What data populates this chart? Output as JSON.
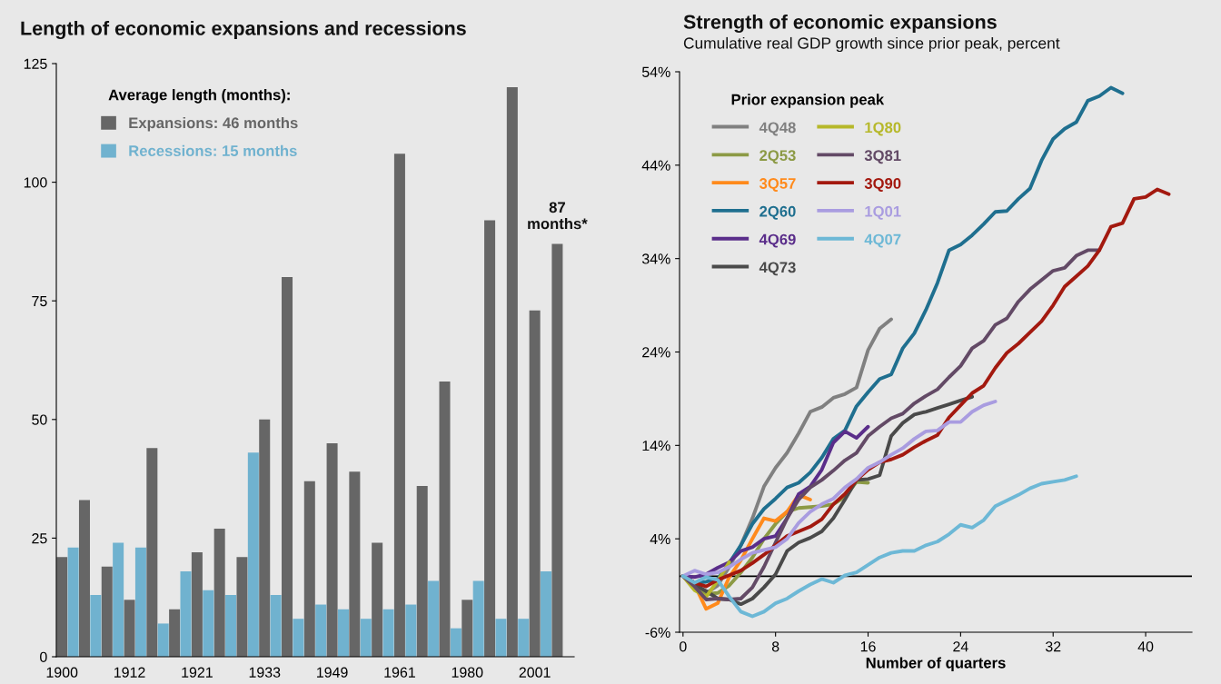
{
  "chart_data": [
    {
      "type": "bar",
      "title": "Length of economic expansions and recessions",
      "categories": [
        "1900",
        null,
        null,
        null,
        null,
        null,
        "1912",
        null,
        null,
        null,
        null,
        null,
        "1921",
        null,
        null,
        null,
        null,
        null,
        "1933",
        null,
        null,
        null,
        null,
        null,
        "1949",
        null,
        null,
        null,
        null,
        null,
        "1961",
        null,
        null,
        null,
        null,
        null,
        "1980",
        null,
        null,
        null,
        null,
        null,
        "2001",
        null,
        null
      ],
      "series": [
        {
          "name": "Expansions: 46 months",
          "color": "#666666",
          "values": [
            21,
            null,
            33,
            null,
            19,
            null,
            12,
            null,
            44,
            null,
            10,
            null,
            22,
            null,
            27,
            null,
            21,
            null,
            50,
            null,
            80,
            null,
            37,
            null,
            45,
            null,
            39,
            null,
            24,
            null,
            106,
            null,
            36,
            null,
            58,
            null,
            12,
            null,
            92,
            null,
            120,
            null,
            73,
            null,
            87
          ]
        },
        {
          "name": "Recessions: 15 months",
          "color": "#70b2cf",
          "values": [
            null,
            23,
            null,
            13,
            null,
            24,
            null,
            23,
            null,
            7,
            null,
            18,
            null,
            14,
            null,
            13,
            null,
            43,
            null,
            13,
            null,
            8,
            null,
            11,
            null,
            10,
            null,
            8,
            null,
            10,
            null,
            11,
            null,
            16,
            null,
            6,
            null,
            16,
            null,
            8,
            null,
            8,
            null,
            18,
            null
          ]
        }
      ],
      "ylim": [
        0,
        125
      ],
      "yticks": [
        0,
        25,
        50,
        75,
        100,
        125
      ],
      "legend": "top left",
      "legend_title": "Average length (months):",
      "annotations": [
        "87\nmonths*"
      ]
    },
    {
      "type": "line",
      "title": "Strength of economic expansions",
      "subtitle": "Cumulative real GDP growth since prior peak, percent",
      "xlabel": "Number of quarters",
      "series": [
        {
          "name": "4Q48",
          "color": "#808080",
          "x": [
            0,
            1,
            2,
            3,
            4,
            5,
            6,
            7,
            8,
            9,
            10,
            11,
            12,
            13,
            14,
            15,
            16,
            17,
            18
          ],
          "values": [
            0,
            -0.9,
            -1.8,
            -1.0,
            1.0,
            3.3,
            6.2,
            9.6,
            11.6,
            13.2,
            15.3,
            17.6,
            18.1,
            19.1,
            19.5,
            20.2,
            24.2,
            26.5,
            27.5
          ]
        },
        {
          "name": "2Q53",
          "color": "#8c9a45",
          "x": [
            0,
            1,
            2,
            3,
            4,
            5,
            6,
            7,
            8,
            9,
            10,
            11,
            12,
            13,
            14,
            15,
            16
          ],
          "values": [
            0,
            -1.2,
            -1.9,
            -1.8,
            -1.0,
            0.4,
            2.0,
            4.0,
            5.6,
            6.9,
            7.3,
            7.4,
            7.5,
            7.7,
            8.5,
            10.1,
            10.0
          ]
        },
        {
          "name": "3Q57",
          "color": "#ff8a1c",
          "x": [
            0,
            1,
            2,
            3,
            4,
            5,
            6,
            7,
            8,
            9,
            10,
            11
          ],
          "values": [
            0,
            -0.9,
            -3.5,
            -2.9,
            -0.1,
            1.7,
            4.0,
            6.2,
            5.9,
            6.9,
            8.7,
            8.2
          ]
        },
        {
          "name": "2Q60",
          "color": "#1f6f8f",
          "x": [
            0,
            1,
            2,
            3,
            4,
            5,
            6,
            7,
            8,
            9,
            10,
            11,
            12,
            13,
            14,
            15,
            16,
            17,
            18,
            19,
            20,
            21,
            22,
            23,
            24,
            25,
            26,
            27,
            28,
            29,
            30,
            31,
            32,
            33,
            34,
            35,
            36,
            37,
            38
          ],
          "values": [
            0,
            -0.7,
            -0.6,
            -0.3,
            1.4,
            3.3,
            5.6,
            7.2,
            8.3,
            9.5,
            10.0,
            11.1,
            12.7,
            14.7,
            15.6,
            18.2,
            19.7,
            21.1,
            21.6,
            24.4,
            26.0,
            28.5,
            31.4,
            34.9,
            35.5,
            36.5,
            37.7,
            39.0,
            39.1,
            40.4,
            41.5,
            44.5,
            46.8,
            47.9,
            48.6,
            50.9,
            51.4,
            52.3,
            51.7
          ]
        },
        {
          "name": "4Q69",
          "color": "#5a2d8a",
          "x": [
            0,
            1,
            2,
            3,
            4,
            5,
            6,
            7,
            8,
            9,
            10,
            11,
            12,
            13,
            14,
            15,
            16
          ],
          "values": [
            0,
            -0.1,
            0.2,
            0.9,
            1.5,
            2.7,
            3.1,
            4.0,
            4.3,
            6.2,
            8.8,
            9.6,
            11.4,
            14.3,
            15.5,
            14.8,
            16.0
          ]
        },
        {
          "name": "4Q73",
          "color": "#4a4a4a",
          "x": [
            0,
            1,
            2,
            3,
            4,
            5,
            6,
            7,
            8,
            9,
            10,
            11,
            12,
            13,
            14,
            15,
            16,
            17,
            18,
            19,
            20,
            21,
            22,
            23,
            24,
            25
          ],
          "values": [
            0,
            -0.9,
            -1.6,
            -2.4,
            -2.5,
            -3.0,
            -2.4,
            -1.2,
            0.2,
            2.7,
            3.6,
            4.1,
            4.8,
            6.2,
            8.2,
            10.3,
            10.4,
            10.8,
            15.0,
            16.4,
            17.3,
            17.6,
            18.0,
            18.4,
            18.8,
            19.2
          ]
        },
        {
          "name": "1Q80",
          "color": "#b6b82a",
          "x": [
            0,
            1,
            2,
            3,
            4
          ],
          "values": [
            0,
            -1.5,
            -2.2,
            -0.5,
            1.5
          ]
        },
        {
          "name": "3Q81",
          "color": "#634a66",
          "x": [
            0,
            1,
            2,
            3,
            4,
            5,
            6,
            7,
            8,
            9,
            10,
            11,
            12,
            13,
            14,
            15,
            16,
            17,
            18,
            19,
            20,
            21,
            22,
            23,
            24,
            25,
            26,
            27,
            28,
            29,
            30,
            31,
            32,
            33,
            34,
            35,
            36
          ],
          "values": [
            0,
            -1.1,
            -2.5,
            -2.4,
            -2.5,
            -2.4,
            -1.2,
            1.0,
            3.6,
            6.2,
            8.2,
            9.5,
            10.3,
            11.3,
            12.4,
            13.2,
            15.0,
            16.0,
            16.9,
            17.4,
            18.5,
            19.3,
            20.0,
            21.3,
            22.5,
            24.4,
            25.2,
            26.9,
            27.6,
            29.4,
            30.7,
            31.7,
            32.7,
            33.0,
            34.3,
            34.9,
            34.9
          ]
        },
        {
          "name": "3Q90",
          "color": "#a3190f",
          "x": [
            0,
            1,
            2,
            3,
            4,
            5,
            6,
            7,
            8,
            9,
            10,
            11,
            12,
            13,
            14,
            15,
            16,
            17,
            18,
            19,
            20,
            21,
            22,
            23,
            24,
            25,
            26,
            27,
            28,
            29,
            30,
            31,
            32,
            33,
            34,
            35,
            36,
            37,
            38,
            39,
            40,
            41,
            42
          ],
          "values": [
            0,
            -0.7,
            -1.1,
            -0.4,
            0.1,
            0.6,
            1.4,
            2.3,
            3.3,
            4.3,
            4.8,
            5.3,
            6.1,
            7.7,
            8.8,
            10.3,
            11.4,
            12.2,
            12.5,
            13.0,
            13.8,
            14.5,
            15.1,
            17.0,
            18.3,
            19.6,
            20.4,
            22.3,
            23.9,
            24.9,
            26.1,
            27.3,
            29.0,
            31.0,
            32.1,
            33.2,
            34.9,
            37.4,
            37.8,
            40.4,
            40.6,
            41.4,
            40.9
          ]
        },
        {
          "name": "1Q01",
          "color": "#a99ce0",
          "x": [
            0,
            1,
            2,
            3,
            4,
            5,
            6,
            7,
            8,
            9,
            10,
            11,
            12,
            13,
            14,
            15,
            16,
            17,
            18,
            19,
            20,
            21,
            22,
            23,
            24,
            25,
            26,
            27
          ],
          "values": [
            0,
            0.6,
            0.2,
            0.4,
            1.0,
            1.8,
            2.5,
            2.8,
            3.1,
            4.0,
            5.7,
            6.9,
            7.7,
            8.3,
            9.5,
            10.4,
            11.6,
            12.2,
            13.0,
            13.7,
            14.7,
            15.5,
            15.6,
            16.5,
            16.5,
            17.6,
            18.3,
            18.7
          ]
        },
        {
          "name": "4Q07",
          "color": "#6db8d6",
          "x": [
            0,
            1,
            2,
            3,
            4,
            5,
            6,
            7,
            8,
            9,
            10,
            11,
            12,
            13,
            14,
            15,
            16,
            17,
            18,
            19,
            20,
            21,
            22,
            23,
            24,
            25,
            26,
            27,
            28,
            29,
            30,
            31,
            32,
            33,
            34
          ],
          "values": [
            0,
            -0.7,
            -0.1,
            -0.4,
            -2.2,
            -3.8,
            -4.3,
            -3.8,
            -2.9,
            -2.4,
            -1.6,
            -0.9,
            -0.3,
            -0.7,
            0.1,
            0.4,
            1.2,
            2.0,
            2.5,
            2.7,
            2.7,
            3.3,
            3.7,
            4.5,
            5.5,
            5.2,
            6.0,
            7.5,
            8.1,
            8.7,
            9.4,
            9.9,
            10.1,
            10.3,
            10.7
          ]
        }
      ],
      "xlim": [
        -0.3,
        44
      ],
      "xticks": [
        0,
        8,
        16,
        24,
        32,
        40
      ],
      "ylim": [
        -6,
        54
      ],
      "yticks": [
        {
          "value": -6,
          "label": "-6%"
        },
        {
          "value": 4,
          "label": "4%"
        },
        {
          "value": 14,
          "label": "14%"
        },
        {
          "value": 24,
          "label": "24%"
        },
        {
          "value": 34,
          "label": "34%"
        },
        {
          "value": 44,
          "label": "44%"
        },
        {
          "value": 54,
          "label": "54%"
        }
      ],
      "ref_lines": [
        {
          "axis": "y",
          "value": 0,
          "color": "#000000"
        }
      ],
      "legend": "top left",
      "legend_title": "Prior expansion peak"
    }
  ]
}
